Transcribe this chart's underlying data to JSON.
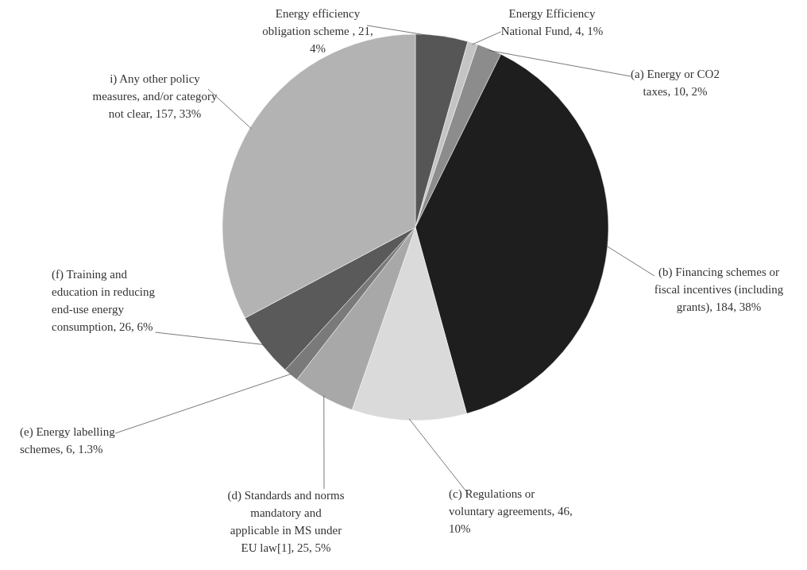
{
  "chart_data": {
    "type": "pie",
    "categories": [
      "Energy efficiency obligation scheme",
      "Energy Efficiency National Fund",
      "(a) Energy or CO2 taxes",
      "(b) Financing schemes or fiscal incentives (including grants)",
      "(c) Regulations or voluntary agreements",
      "(d) Standards and norms mandatory and applicable in MS under EU law[1]",
      "(e) Energy labelling schemes",
      "(f) Training and education in reducing end-use energy consumption",
      "i) Any other policy measures, and/or category not clear"
    ],
    "values": [
      21,
      4,
      10,
      184,
      46,
      25,
      6,
      26,
      157
    ],
    "value_labels": [
      " , 21, 4%",
      ", 4, 1%",
      ", 10, 2%",
      ", 184, 38%",
      ", 46, 10%",
      ", 25, 5%",
      ", 6, 1.3%",
      ", 26, 6%",
      ", 157, 33%"
    ],
    "colors": [
      "#565656",
      "#c4c4c4",
      "#8c8c8c",
      "#1e1e1e",
      "#dadada",
      "#a8a8a8",
      "#7a7a7a",
      "#5a5a5a",
      "#b3b3b3"
    ]
  }
}
